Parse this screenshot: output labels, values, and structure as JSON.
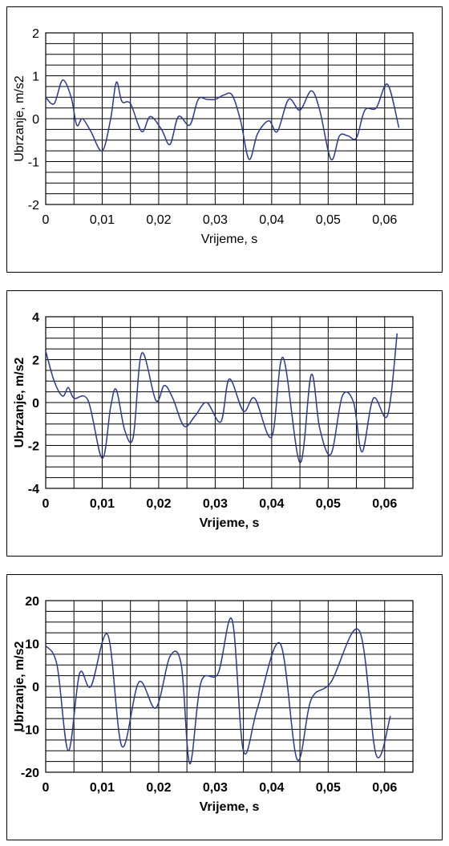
{
  "chart_data": [
    {
      "type": "line",
      "xlabel": "Vrijeme, s",
      "ylabel": "Ubrzanje, m/s2",
      "xlim": [
        0,
        0.065
      ],
      "ylim": [
        -2,
        2
      ],
      "x_ticks": [
        "0",
        "0,01",
        "0,02",
        "0,03",
        "0,04",
        "0,05",
        "0,06"
      ],
      "y_ticks": [
        "2",
        "1",
        "0",
        "-1",
        "-2"
      ],
      "grid": true,
      "bold": false,
      "series": [
        {
          "color": "#2b3a8f",
          "x": [
            0,
            0.0015,
            0.003,
            0.0045,
            0.0055,
            0.0065,
            0.008,
            0.01,
            0.0115,
            0.0125,
            0.0135,
            0.015,
            0.017,
            0.0185,
            0.0205,
            0.022,
            0.0235,
            0.0255,
            0.027,
            0.0285,
            0.03,
            0.0315,
            0.033,
            0.0345,
            0.036,
            0.0375,
            0.0395,
            0.041,
            0.043,
            0.045,
            0.047,
            0.0485,
            0.0505,
            0.052,
            0.0535,
            0.055,
            0.0565,
            0.0585,
            0.0605,
            0.0625
          ],
          "y": [
            0.5,
            0.35,
            0.9,
            0.5,
            -0.15,
            0.0,
            -0.3,
            -0.75,
            0.0,
            0.85,
            0.4,
            0.35,
            -0.3,
            0.05,
            -0.25,
            -0.6,
            0.05,
            -0.15,
            0.45,
            0.45,
            0.45,
            0.55,
            0.55,
            -0.05,
            -0.95,
            -0.35,
            -0.05,
            -0.3,
            0.45,
            0.2,
            0.65,
            0.2,
            -0.95,
            -0.4,
            -0.4,
            -0.45,
            0.2,
            0.25,
            0.8,
            -0.2
          ]
        }
      ]
    },
    {
      "type": "line",
      "xlabel": "Vrijeme, s",
      "ylabel": "Ubrzanje, m/s2",
      "xlim": [
        0,
        0.065
      ],
      "ylim": [
        -4,
        4
      ],
      "x_ticks": [
        "0",
        "0,01",
        "0,02",
        "0,03",
        "0,04",
        "0,05",
        "0,06"
      ],
      "y_ticks": [
        "4",
        "2",
        "0",
        "-2",
        "-4"
      ],
      "grid": true,
      "bold": true,
      "series": [
        {
          "color": "#2b3a8f",
          "x": [
            0,
            0.0015,
            0.003,
            0.004,
            0.005,
            0.0075,
            0.01,
            0.0115,
            0.0125,
            0.014,
            0.0155,
            0.017,
            0.0195,
            0.021,
            0.0225,
            0.0245,
            0.0265,
            0.0285,
            0.031,
            0.0325,
            0.035,
            0.037,
            0.04,
            0.042,
            0.045,
            0.047,
            0.0485,
            0.0505,
            0.0525,
            0.0545,
            0.056,
            0.058,
            0.0605,
            0.0622
          ],
          "y": [
            2.4,
            1.0,
            0.3,
            0.7,
            0.2,
            0.1,
            -2.6,
            -0.2,
            0.6,
            -1.3,
            -1.6,
            2.3,
            0.1,
            0.8,
            0.2,
            -1.1,
            -0.6,
            0.0,
            -0.9,
            1.1,
            -0.4,
            0.2,
            -1.6,
            2.1,
            -2.8,
            1.3,
            -1.2,
            -2.4,
            0.3,
            0.0,
            -2.3,
            0.2,
            -0.6,
            3.2
          ]
        }
      ]
    },
    {
      "type": "line",
      "xlabel": "Vrijeme, s",
      "ylabel": "Ubrzanje, m/s2",
      "xlim": [
        0,
        0.065
      ],
      "ylim": [
        -20,
        20
      ],
      "x_ticks": [
        "0",
        "0,01",
        "0,02",
        "0,03",
        "0,04",
        "0,05",
        "0,06"
      ],
      "y_ticks": [
        "20",
        "10",
        "0",
        "-10",
        "-20"
      ],
      "grid": true,
      "bold": true,
      "series": [
        {
          "color": "#2b3a8f",
          "x": [
            0,
            0.002,
            0.004,
            0.006,
            0.008,
            0.011,
            0.0135,
            0.0165,
            0.0195,
            0.022,
            0.024,
            0.0255,
            0.0275,
            0.0305,
            0.033,
            0.035,
            0.0375,
            0.0415,
            0.0445,
            0.047,
            0.0505,
            0.0555,
            0.0585,
            0.061
          ],
          "y": [
            9.5,
            5,
            -15,
            3,
            0,
            12,
            -14,
            1,
            -5,
            7,
            5,
            -18,
            1,
            3,
            15.5,
            -15,
            -5,
            10,
            -17,
            -3,
            1,
            13,
            -16,
            -7
          ]
        }
      ]
    }
  ]
}
